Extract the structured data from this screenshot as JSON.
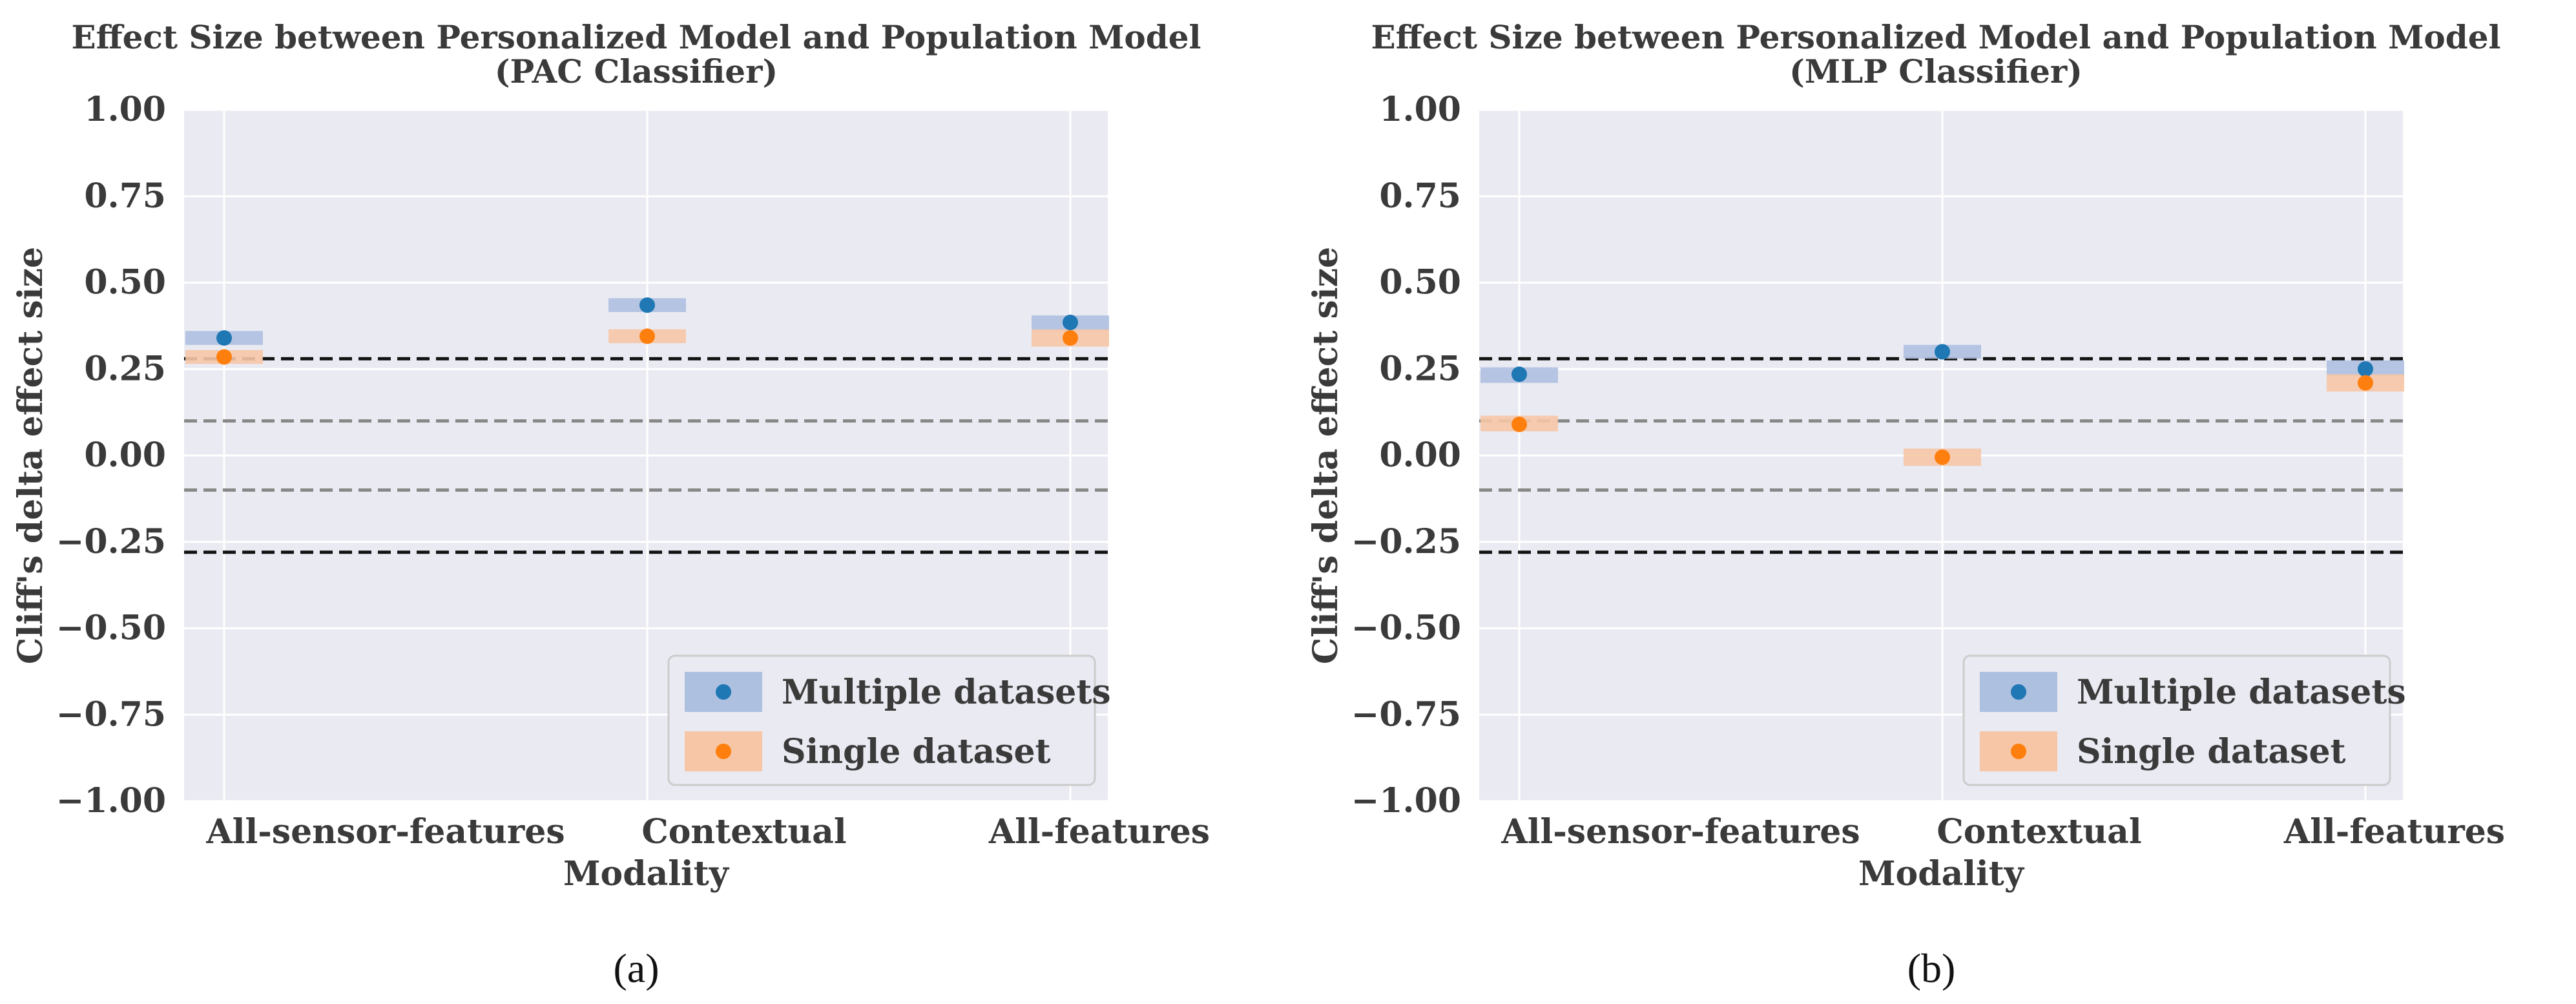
{
  "chart_data": [
    {
      "type": "scatter",
      "title": "Effect Size between Personalized Model and Population Model",
      "subtitle": "(PAC Classifier)",
      "xlabel": "Modality",
      "ylabel": "Cliff's delta effect size",
      "categories": [
        "All-sensor-features",
        "Contextual",
        "All-features"
      ],
      "ylim": [
        -1.0,
        1.0
      ],
      "yticks": [
        "1.00",
        "0.75",
        "0.50",
        "0.25",
        "0.00",
        "−0.25",
        "−0.50",
        "−0.75",
        "−1.00"
      ],
      "ytick_values": [
        1.0,
        0.75,
        0.5,
        0.25,
        0.0,
        -0.25,
        -0.5,
        -0.75,
        -1.0
      ],
      "grid": true,
      "legend_position": "bottom-right",
      "reference_lines": [
        {
          "value": 0.28,
          "style": "dashed",
          "color": "#111111"
        },
        {
          "value": 0.1,
          "style": "dashed",
          "color": "#888888"
        },
        {
          "value": -0.1,
          "style": "dashed",
          "color": "#888888"
        },
        {
          "value": -0.28,
          "style": "dashed",
          "color": "#111111"
        }
      ],
      "series": [
        {
          "name": "Multiple datasets",
          "color": "#1f77b4",
          "band_color": "#aec0e0",
          "values": [
            0.34,
            0.435,
            0.385
          ],
          "ci_low": [
            0.32,
            0.415,
            0.36
          ],
          "ci_high": [
            0.36,
            0.455,
            0.405
          ]
        },
        {
          "name": "Single dataset",
          "color": "#ff7f0e",
          "band_color": "#f6c6a6",
          "values": [
            0.285,
            0.345,
            0.34
          ],
          "ci_low": [
            0.265,
            0.325,
            0.315
          ],
          "ci_high": [
            0.305,
            0.365,
            0.365
          ]
        }
      ]
    },
    {
      "type": "scatter",
      "title": "Effect Size between Personalized Model and Population Model",
      "subtitle": "(MLP Classifier)",
      "xlabel": "Modality",
      "ylabel": "Cliff's delta effect size",
      "categories": [
        "All-sensor-features",
        "Contextual",
        "All-features"
      ],
      "ylim": [
        -1.0,
        1.0
      ],
      "yticks": [
        "1.00",
        "0.75",
        "0.50",
        "0.25",
        "0.00",
        "−0.25",
        "−0.50",
        "−0.75",
        "−1.00"
      ],
      "ytick_values": [
        1.0,
        0.75,
        0.5,
        0.25,
        0.0,
        -0.25,
        -0.5,
        -0.75,
        -1.0
      ],
      "grid": true,
      "legend_position": "bottom-right",
      "reference_lines": [
        {
          "value": 0.28,
          "style": "dashed",
          "color": "#111111"
        },
        {
          "value": 0.1,
          "style": "dashed",
          "color": "#888888"
        },
        {
          "value": -0.1,
          "style": "dashed",
          "color": "#888888"
        },
        {
          "value": -0.28,
          "style": "dashed",
          "color": "#111111"
        }
      ],
      "series": [
        {
          "name": "Multiple datasets",
          "color": "#1f77b4",
          "band_color": "#aec0e0",
          "values": [
            0.235,
            0.3,
            0.25
          ],
          "ci_low": [
            0.21,
            0.28,
            0.23
          ],
          "ci_high": [
            0.255,
            0.32,
            0.275
          ]
        },
        {
          "name": "Single dataset",
          "color": "#ff7f0e",
          "band_color": "#f6c6a6",
          "values": [
            0.09,
            -0.005,
            0.21
          ],
          "ci_low": [
            0.07,
            -0.03,
            0.185
          ],
          "ci_high": [
            0.115,
            0.02,
            0.235
          ]
        }
      ]
    }
  ],
  "captions": [
    "(a)",
    "(b)"
  ]
}
